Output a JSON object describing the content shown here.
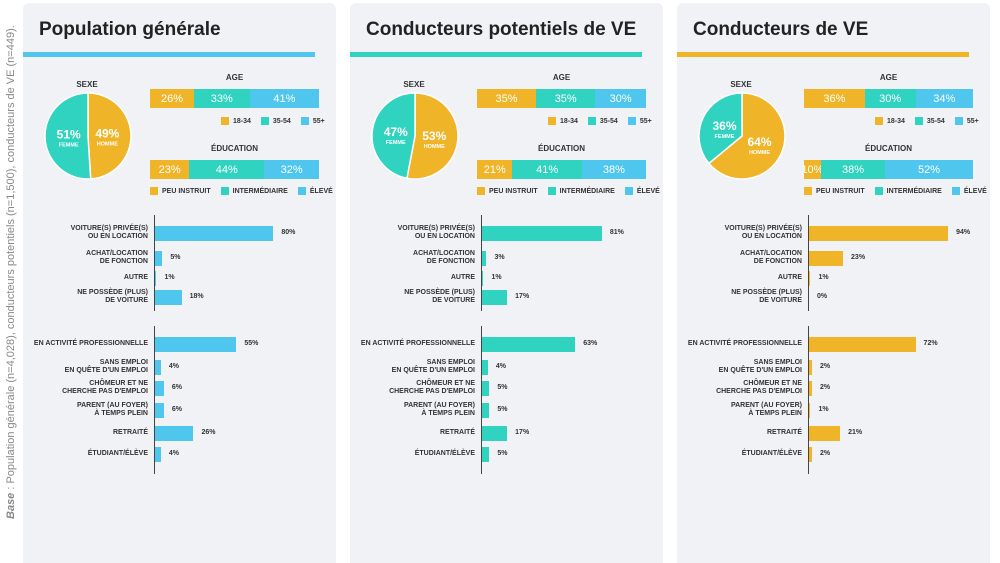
{
  "side_note": {
    "label": "Base",
    "text": " : Population générale (n=4,028), conducteurs potentiels (n=1,500), conducteurs de VE (n=449)."
  },
  "colors": {
    "yellow": "#f0b429",
    "teal": "#2fd3bf",
    "blue": "#4fc6ee"
  },
  "labels": {
    "sexe": "SEXE",
    "age": "AGE",
    "education": "ÉDUCATION",
    "femme": "FEMME",
    "homme": "HOMME",
    "age_legend": [
      "18-34",
      "35-54",
      "55+"
    ],
    "edu_legend": [
      "PEU INSTRUIT",
      "INTERMÉDIAIRE",
      "ÉLEVÉ"
    ],
    "vehicle_categories": [
      "VOITURE(S) PRIVÉE(S) OU EN LOCATION",
      "ACHAT/LOCATION DE FONCTION",
      "AUTRE",
      "NE POSSÈDE (PLUS) DE VOITURE"
    ],
    "employment_categories": [
      "EN ACTIVITÉ PROFESSIONNELLE",
      "SANS EMPLOI EN QUÊTE D'UN EMPLOI",
      "CHÔMEUR ET NE CHERCHE PAS D'EMPLOI",
      "PARENT (AU FOYER) À TEMPS PLEIN",
      "RETRAITÉ",
      "ÉTUDIANT/ÉLÈVE"
    ]
  },
  "vehicle_lines": [
    [
      "VOITURE(S) PRIVÉE(S)",
      "OU EN LOCATION"
    ],
    [
      "ACHAT/LOCATION",
      "DE FONCTION"
    ],
    [
      "AUTRE"
    ],
    [
      "NE POSSÈDE (PLUS)",
      "DE VOITURE"
    ]
  ],
  "employment_lines": [
    [
      "EN ACTIVITÉ PROFESSIONNELLE"
    ],
    [
      "SANS EMPLOI",
      "EN QUÊTE D'UN EMPLOI"
    ],
    [
      "CHÔMEUR ET NE",
      "CHERCHE PAS D'EMPLOI"
    ],
    [
      "PARENT (AU FOYER)",
      "À TEMPS PLEIN"
    ],
    [
      "RETRAITÉ"
    ],
    [
      "ÉTUDIANT/ÉLÈVE"
    ]
  ],
  "chart_data": [
    {
      "title": "Population générale",
      "accent": "#4fc6ee",
      "sexe": {
        "type": "pie",
        "femme": 51,
        "homme": 49,
        "femme_label": "51%",
        "homme_label": "49%"
      },
      "age": {
        "type": "bar",
        "values": [
          26,
          33,
          41
        ],
        "labels": [
          "26%",
          "33%",
          "41%"
        ]
      },
      "education": {
        "type": "bar",
        "values": [
          23,
          44,
          32
        ],
        "labels": [
          "23%",
          "44%",
          "32%"
        ]
      },
      "vehicle": {
        "type": "bar",
        "values": [
          80,
          5,
          1,
          18
        ],
        "labels": [
          "80%",
          "5%",
          "1%",
          "18%"
        ]
      },
      "employment": {
        "type": "bar",
        "values": [
          55,
          4,
          6,
          6,
          26,
          4
        ],
        "labels": [
          "55%",
          "4%",
          "6%",
          "6%",
          "26%",
          "4%"
        ]
      }
    },
    {
      "title": "Conducteurs potentiels de VE",
      "accent": "#2fd3bf",
      "sexe": {
        "type": "pie",
        "femme": 47,
        "homme": 53,
        "femme_label": "47%",
        "homme_label": "53%"
      },
      "age": {
        "type": "bar",
        "values": [
          35,
          35,
          30
        ],
        "labels": [
          "35%",
          "35%",
          "30%"
        ]
      },
      "education": {
        "type": "bar",
        "values": [
          21,
          41,
          38
        ],
        "labels": [
          "21%",
          "41%",
          "38%"
        ]
      },
      "vehicle": {
        "type": "bar",
        "values": [
          81,
          3,
          1,
          17
        ],
        "labels": [
          "81%",
          "3%",
          "1%",
          "17%"
        ]
      },
      "employment": {
        "type": "bar",
        "values": [
          63,
          4,
          5,
          5,
          17,
          5
        ],
        "labels": [
          "63%",
          "4%",
          "5%",
          "5%",
          "17%",
          "5%"
        ]
      }
    },
    {
      "title": "Conducteurs de VE",
      "accent": "#f0b429",
      "sexe": {
        "type": "pie",
        "femme": 36,
        "homme": 64,
        "femme_label": "36%",
        "homme_label": "64%"
      },
      "age": {
        "type": "bar",
        "values": [
          36,
          30,
          34
        ],
        "labels": [
          "36%",
          "30%",
          "34%"
        ]
      },
      "education": {
        "type": "bar",
        "values": [
          10,
          38,
          52
        ],
        "labels": [
          "10%",
          "38%",
          "52%"
        ]
      },
      "vehicle": {
        "type": "bar",
        "values": [
          94,
          23,
          1,
          0
        ],
        "labels": [
          "94%",
          "23%",
          "1%",
          "0%"
        ]
      },
      "employment": {
        "type": "bar",
        "values": [
          72,
          2,
          2,
          1,
          21,
          2
        ],
        "labels": [
          "72%",
          "2%",
          "2%",
          "1%",
          "21%",
          "2%"
        ]
      }
    }
  ]
}
